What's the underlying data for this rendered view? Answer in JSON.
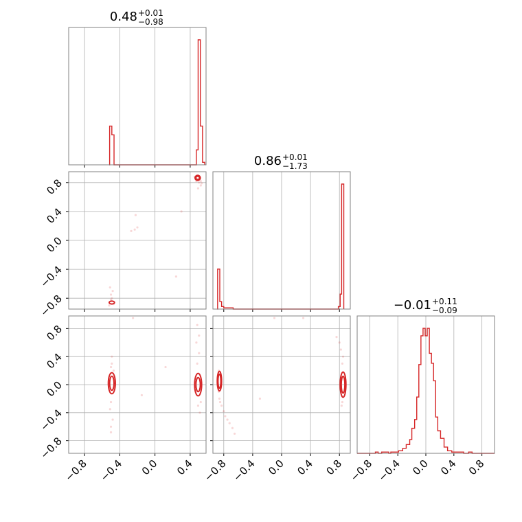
{
  "chart_data": {
    "type": "corner",
    "color": "#d62728",
    "parameters": [
      {
        "value": "0.48",
        "plus": "+0.01",
        "minus": "−0.98"
      },
      {
        "value": "0.86",
        "plus": "+0.01",
        "minus": "−1.73"
      },
      {
        "value": "−0.01",
        "plus": "+0.11",
        "minus": "−0.09"
      }
    ],
    "ticks": [
      "−0.8",
      "−0.4",
      "0.0",
      "0.4",
      "0.8"
    ],
    "tick_values": [
      -0.8,
      -0.4,
      0.0,
      0.4,
      0.8
    ],
    "axis_ranges": [
      [
        -0.98,
        0.58
      ],
      [
        -0.95,
        0.95
      ],
      [
        -0.98,
        0.98
      ]
    ],
    "grid": true,
    "marginals": [
      {
        "x_range": [
          -0.98,
          0.58
        ],
        "y_max": 1.0,
        "steps": [
          [
            -0.52,
            0.0
          ],
          [
            -0.515,
            0.31
          ],
          [
            -0.49,
            0.24
          ],
          [
            -0.465,
            0.0
          ],
          [
            0.46,
            0.0
          ],
          [
            0.47,
            0.12
          ],
          [
            0.49,
            1.0
          ],
          [
            0.515,
            0.31
          ],
          [
            0.54,
            0.02
          ],
          [
            0.565,
            0.0
          ]
        ]
      },
      {
        "x_range": [
          -0.95,
          0.95
        ],
        "y_max": 1.0,
        "steps": [
          [
            -0.89,
            0.0
          ],
          [
            -0.885,
            0.32
          ],
          [
            -0.855,
            0.06
          ],
          [
            -0.83,
            0.02
          ],
          [
            -0.8,
            0.01
          ],
          [
            -0.67,
            0.0
          ],
          [
            0.78,
            0.0
          ],
          [
            0.785,
            0.02
          ],
          [
            0.81,
            0.12
          ],
          [
            0.83,
            1.0
          ],
          [
            0.86,
            0.0
          ]
        ]
      },
      {
        "x_range": [
          -0.98,
          0.98
        ],
        "y_max": 1.0,
        "steps": [
          [
            -0.98,
            0.0
          ],
          [
            -0.72,
            0.0
          ],
          [
            -0.72,
            0.01
          ],
          [
            -0.68,
            0.0
          ],
          [
            -0.63,
            0.01
          ],
          [
            -0.58,
            0.01
          ],
          [
            -0.53,
            0.0
          ],
          [
            -0.5,
            0.01
          ],
          [
            -0.45,
            0.01
          ],
          [
            -0.39,
            0.02
          ],
          [
            -0.33,
            0.04
          ],
          [
            -0.28,
            0.07
          ],
          [
            -0.23,
            0.11
          ],
          [
            -0.2,
            0.2
          ],
          [
            -0.16,
            0.27
          ],
          [
            -0.13,
            0.45
          ],
          [
            -0.1,
            0.71
          ],
          [
            -0.07,
            0.94
          ],
          [
            -0.04,
            1.0
          ],
          [
            -0.01,
            0.94
          ],
          [
            0.02,
            1.0
          ],
          [
            0.05,
            0.8
          ],
          [
            0.08,
            0.72
          ],
          [
            0.11,
            0.58
          ],
          [
            0.14,
            0.29
          ],
          [
            0.17,
            0.18
          ],
          [
            0.21,
            0.12
          ],
          [
            0.26,
            0.05
          ],
          [
            0.31,
            0.02
          ],
          [
            0.37,
            0.01
          ],
          [
            0.47,
            0.01
          ],
          [
            0.54,
            0.0
          ],
          [
            0.61,
            0.01
          ],
          [
            0.66,
            0.0
          ],
          [
            0.98,
            0.0
          ]
        ]
      }
    ],
    "joint": [
      {
        "x_param": 0,
        "y_param": 1,
        "contours": [
          {
            "type": "ellipse",
            "cx": 0.485,
            "cy": 0.865,
            "rx": 0.02,
            "ry": 0.022
          },
          {
            "type": "ellipse",
            "cx": 0.485,
            "cy": 0.865,
            "rx": 0.03,
            "ry": 0.035
          },
          {
            "type": "ellipse",
            "cx": -0.49,
            "cy": -0.86,
            "rx": 0.03,
            "ry": 0.02
          }
        ],
        "points": [
          [
            0.47,
            0.82
          ],
          [
            0.5,
            0.8
          ],
          [
            0.52,
            0.76
          ],
          [
            0.49,
            0.72
          ],
          [
            0.52,
            0.82
          ],
          [
            0.45,
            0.88
          ],
          [
            0.53,
            0.79
          ],
          [
            -0.5,
            -0.82
          ],
          [
            -0.5,
            -0.75
          ],
          [
            -0.48,
            -0.7
          ],
          [
            -0.51,
            -0.65
          ],
          [
            -0.52,
            -0.9
          ],
          [
            -0.47,
            -0.88
          ],
          [
            -0.49,
            -0.8
          ],
          [
            -0.27,
            0.13
          ],
          [
            -0.22,
            0.35
          ],
          [
            -0.23,
            0.15
          ],
          [
            -0.2,
            0.18
          ],
          [
            0.24,
            -0.5
          ],
          [
            0.3,
            0.4
          ]
        ]
      },
      {
        "x_param": 0,
        "y_param": 2,
        "contours": [
          {
            "type": "ellipse",
            "cx": -0.49,
            "cy": 0.02,
            "rx": 0.025,
            "ry": 0.1
          },
          {
            "type": "ellipse",
            "cx": -0.49,
            "cy": 0.02,
            "rx": 0.04,
            "ry": 0.15
          },
          {
            "type": "ellipse",
            "cx": 0.49,
            "cy": 0.0,
            "rx": 0.025,
            "ry": 0.1
          },
          {
            "type": "ellipse",
            "cx": 0.49,
            "cy": 0.0,
            "rx": 0.04,
            "ry": 0.16
          }
        ],
        "points": [
          [
            -0.5,
            0.25
          ],
          [
            -0.49,
            0.3
          ],
          [
            -0.5,
            -0.25
          ],
          [
            -0.51,
            -0.35
          ],
          [
            -0.48,
            -0.5
          ],
          [
            -0.5,
            -0.6
          ],
          [
            -0.49,
            0.4
          ],
          [
            -0.5,
            -0.68
          ],
          [
            -0.47,
            0.2
          ],
          [
            0.48,
            0.3
          ],
          [
            0.5,
            0.45
          ],
          [
            0.49,
            -0.3
          ],
          [
            0.51,
            -0.4
          ],
          [
            0.47,
            0.6
          ],
          [
            0.5,
            0.7
          ],
          [
            0.48,
            0.85
          ],
          [
            0.52,
            -0.25
          ],
          [
            -0.15,
            -0.15
          ],
          [
            0.12,
            0.25
          ],
          [
            -0.25,
            0.95
          ]
        ]
      },
      {
        "x_param": 1,
        "y_param": 2,
        "contours": [
          {
            "type": "ellipse",
            "cx": -0.86,
            "cy": 0.05,
            "rx": 0.02,
            "ry": 0.1
          },
          {
            "type": "ellipse",
            "cx": -0.86,
            "cy": 0.05,
            "rx": 0.03,
            "ry": 0.14
          },
          {
            "type": "ellipse",
            "cx": 0.85,
            "cy": 0.0,
            "rx": 0.025,
            "ry": 0.12
          },
          {
            "type": "ellipse",
            "cx": 0.85,
            "cy": 0.0,
            "rx": 0.04,
            "ry": 0.18
          }
        ],
        "points": [
          [
            -0.87,
            -0.1
          ],
          [
            -0.86,
            -0.2
          ],
          [
            -0.85,
            -0.25
          ],
          [
            -0.83,
            -0.3
          ],
          [
            -0.8,
            -0.38
          ],
          [
            -0.78,
            -0.45
          ],
          [
            -0.75,
            -0.5
          ],
          [
            -0.72,
            -0.55
          ],
          [
            -0.68,
            -0.62
          ],
          [
            -0.65,
            -0.7
          ],
          [
            -0.87,
            0.2
          ],
          [
            0.84,
            0.3
          ],
          [
            0.85,
            0.4
          ],
          [
            0.82,
            0.5
          ],
          [
            0.8,
            0.6
          ],
          [
            0.76,
            0.68
          ],
          [
            0.83,
            -0.3
          ],
          [
            0.84,
            -0.25
          ],
          [
            -0.3,
            -0.2
          ],
          [
            0.3,
            0.95
          ],
          [
            -0.1,
            0.95
          ]
        ]
      }
    ]
  }
}
